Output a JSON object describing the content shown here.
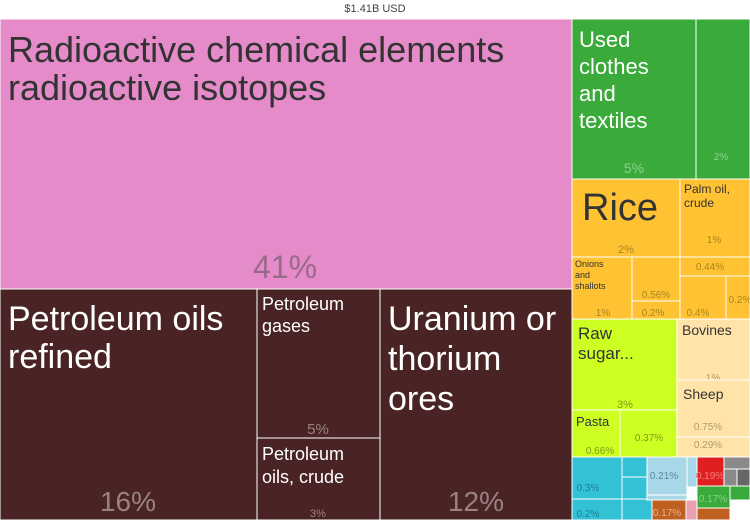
{
  "chart_data": {
    "type": "treemap",
    "title": "$1.41B USD",
    "tiles": [
      {
        "label": "Radioactive chemical elements radioactive isotopes",
        "pct_text": "41%",
        "value": 41,
        "color": "#e58bc9",
        "text_color": "#333333",
        "pct_color": "#9a6a8a"
      },
      {
        "label": "Petroleum oils refined",
        "pct_text": "16%",
        "value": 16,
        "color": "#4a2424",
        "text_color": "#ffffff",
        "pct_color": "#9a8282"
      },
      {
        "label": "Petroleum gases",
        "pct_text": "5%",
        "value": 5,
        "color": "#4a2424",
        "text_color": "#ffffff",
        "pct_color": "#9a8282"
      },
      {
        "label": "Petroleum oils, crude",
        "pct_text": "3%",
        "value": 3,
        "color": "#4a2424",
        "text_color": "#ffffff",
        "pct_color": "#9a8282"
      },
      {
        "label": "Uranium or thorium ores",
        "pct_text": "12%",
        "value": 12,
        "color": "#4a2424",
        "text_color": "#ffffff",
        "pct_color": "#9a8282"
      },
      {
        "label": "Used clothes and textiles",
        "pct_text": "5%",
        "value": 5,
        "color": "#3aaa3a",
        "text_color": "#ffffff",
        "pct_color": "#8fd08f"
      },
      {
        "label": "",
        "pct_text": "2%",
        "value": 2,
        "color": "#3aaa3a",
        "text_color": "#ffffff",
        "pct_color": "#8fd08f"
      },
      {
        "label": "Rice",
        "pct_text": "2%",
        "value": 2,
        "color": "#ffc233",
        "text_color": "#333333",
        "pct_color": "#a88520"
      },
      {
        "label": "Palm oil, crude",
        "pct_text": "1%",
        "value": 1,
        "color": "#ffc233",
        "text_color": "#333333",
        "pct_color": "#a88520"
      },
      {
        "label": "",
        "pct_text": "0.44%",
        "value": 0.44,
        "color": "#ffc233",
        "text_color": "#333333",
        "pct_color": "#a88520"
      },
      {
        "label": "Onions and shallots",
        "pct_text": "1%",
        "value": 1,
        "color": "#ffc233",
        "text_color": "#333333",
        "pct_color": "#a88520"
      },
      {
        "label": "",
        "pct_text": "0.56%",
        "value": 0.56,
        "color": "#ffc233",
        "text_color": "#333333",
        "pct_color": "#a88520"
      },
      {
        "label": "",
        "pct_text": "0.2%",
        "value": 0.2,
        "color": "#ffc233",
        "text_color": "#333333",
        "pct_color": "#a88520"
      },
      {
        "label": "",
        "pct_text": "0.4%",
        "value": 0.4,
        "color": "#ffc233",
        "text_color": "#333333",
        "pct_color": "#a88520"
      },
      {
        "label": "",
        "pct_text": "0.2%",
        "value": 0.2,
        "color": "#ffc233",
        "text_color": "#333333",
        "pct_color": "#a88520"
      },
      {
        "label": "Raw sugar...",
        "pct_text": "3%",
        "value": 3,
        "color": "#ccff22",
        "text_color": "#333333",
        "pct_color": "#7f9a18"
      },
      {
        "label": "Pasta",
        "pct_text": "0.66%",
        "value": 0.66,
        "color": "#ccff22",
        "text_color": "#333333",
        "pct_color": "#7f9a18"
      },
      {
        "label": "",
        "pct_text": "0.37%",
        "value": 0.37,
        "color": "#ccff22",
        "text_color": "#333333",
        "pct_color": "#7f9a18"
      },
      {
        "label": "Bovines",
        "pct_text": "1%",
        "value": 1,
        "color": "#ffe3a8",
        "text_color": "#333333",
        "pct_color": "#b09a6a"
      },
      {
        "label": "Sheep",
        "pct_text": "0.75%",
        "value": 0.75,
        "color": "#ffe3a8",
        "text_color": "#333333",
        "pct_color": "#b09a6a"
      },
      {
        "label": "",
        "pct_text": "0.29%",
        "value": 0.29,
        "color": "#ffe3a8",
        "text_color": "#333333",
        "pct_color": "#b09a6a"
      },
      {
        "label": "",
        "pct_text": "0.3%",
        "value": 0.3,
        "color": "#33c1d6",
        "text_color": "#333333",
        "pct_color": "#1e7f8f"
      },
      {
        "label": "",
        "pct_text": "0.2%",
        "value": 0.2,
        "color": "#33c1d6",
        "text_color": "#333333",
        "pct_color": "#1e7f8f"
      },
      {
        "label": "",
        "pct_text": "0.21%",
        "value": 0.21,
        "color": "#a8d8e8",
        "text_color": "#333333",
        "pct_color": "#5a8aa0"
      },
      {
        "label": "",
        "pct_text": "0.17%",
        "value": 0.17,
        "color": "#c06020",
        "text_color": "#333333",
        "pct_color": "#e8b090"
      },
      {
        "label": "",
        "pct_text": "0.19%",
        "value": 0.19,
        "color": "#e02020",
        "text_color": "#333333",
        "pct_color": "#f08080"
      },
      {
        "label": "",
        "pct_text": "0.17%",
        "value": 0.17,
        "color": "#3aaa3a",
        "text_color": "#333333",
        "pct_color": "#8fd08f"
      }
    ]
  }
}
